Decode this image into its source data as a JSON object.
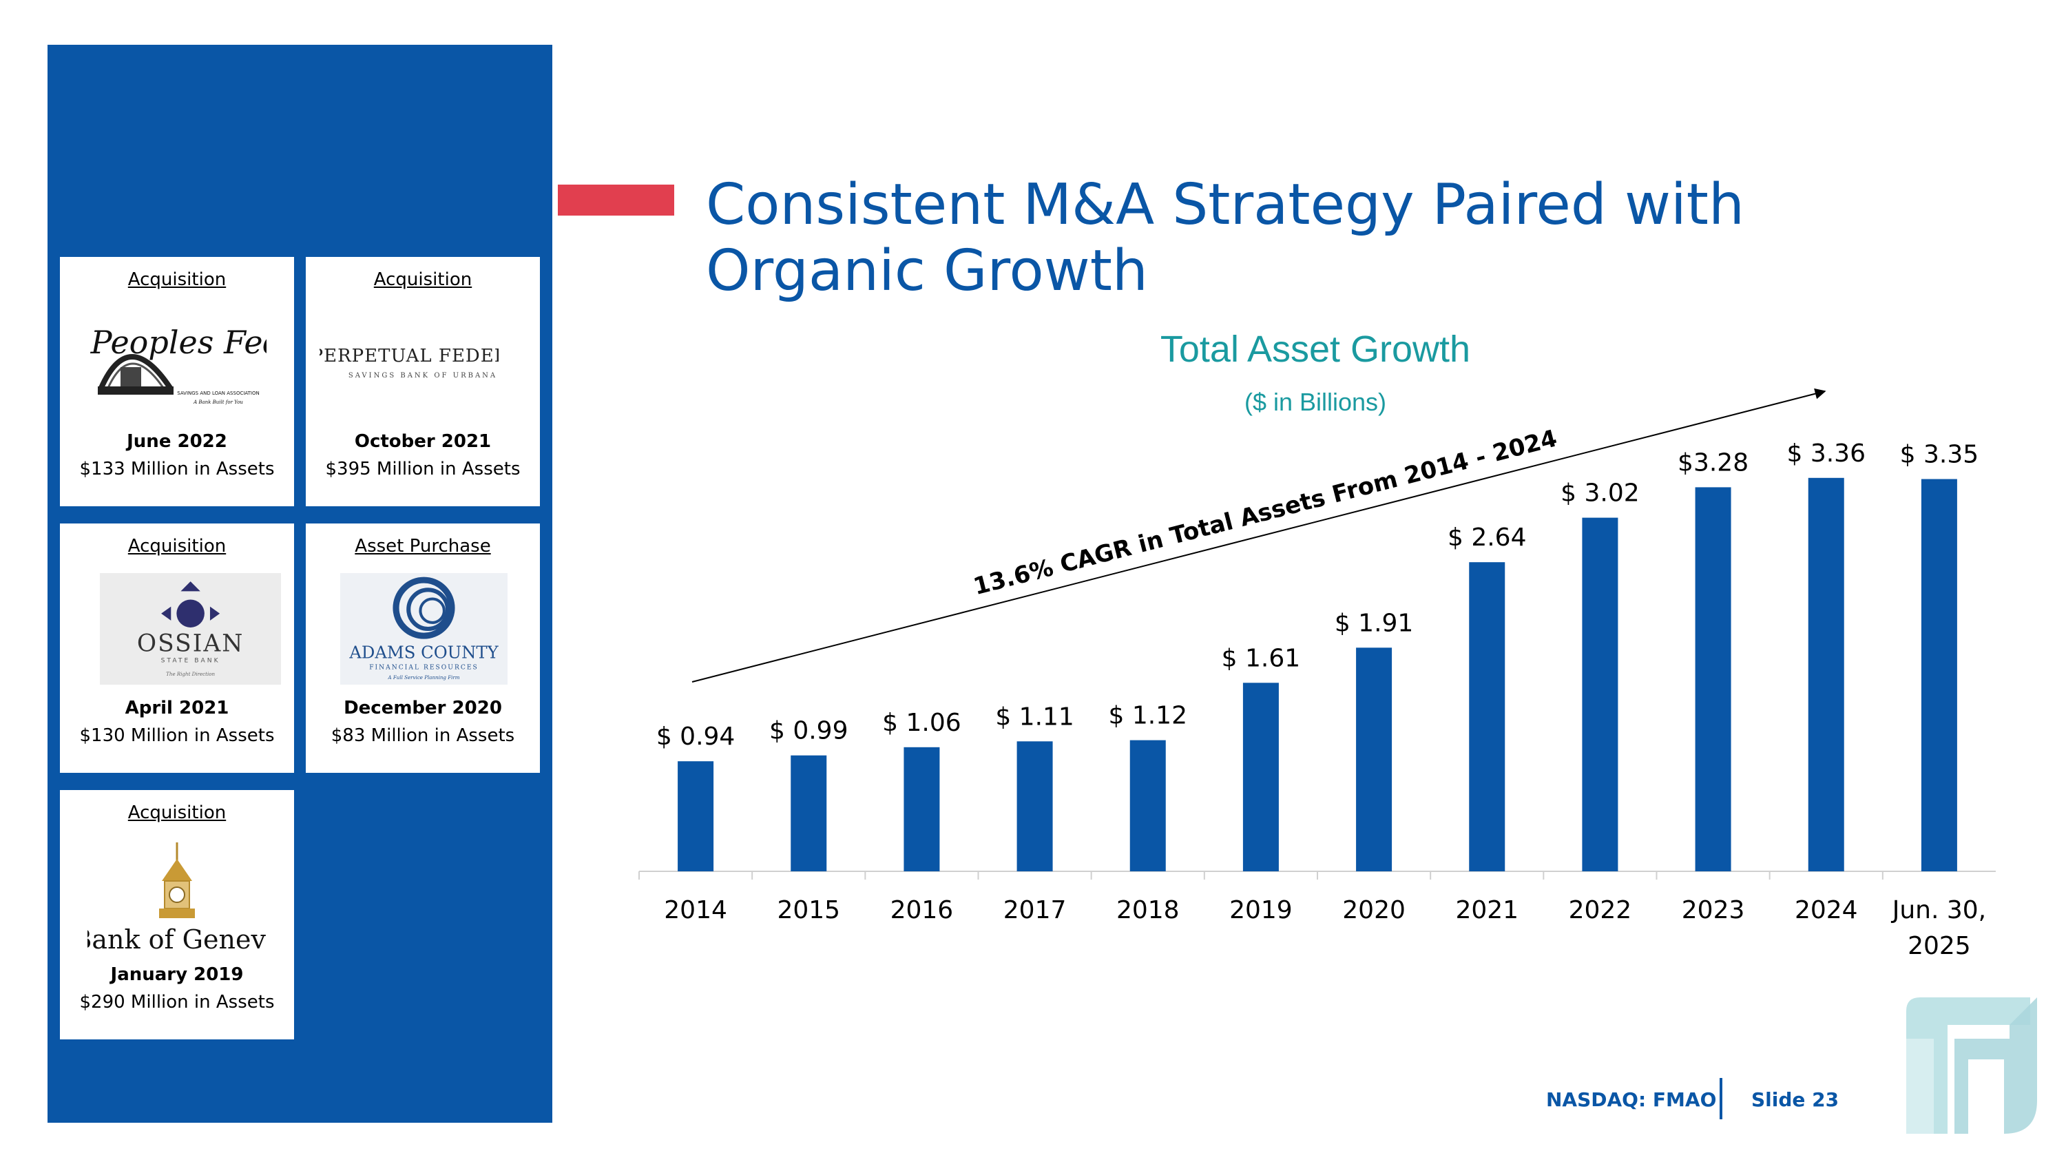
{
  "title": "Consistent M&A Strategy Paired with Organic Growth",
  "acquisitions": [
    {
      "kind": "Acquisition",
      "logo_text": "Peoples Federal",
      "logo_subtext": "SAVINGS AND LOAN ASSOCIATION",
      "logo_tagline": "A Bank Built for You",
      "date": "June 2022",
      "assets": "$133 Million in Assets"
    },
    {
      "kind": "Acquisition",
      "logo_text": "Perpetual Federal",
      "logo_subtext": "SAVINGS BANK OF URBANA",
      "date": "October 2021",
      "assets": "$395 Million in Assets"
    },
    {
      "kind": "Acquisition",
      "logo_text": "OSSIAN",
      "logo_subtext": "STATE BANK",
      "logo_tagline": "The Right Direction",
      "date": "April 2021",
      "assets": "$130 Million in Assets"
    },
    {
      "kind": "Asset Purchase",
      "logo_text": "ADAMS COUNTY",
      "logo_subtext": "FINANCIAL RESOURCES",
      "logo_tagline": "A Full Service Planning Firm",
      "date": "December 2020",
      "assets": "$83 Million in Assets"
    },
    {
      "kind": "Acquisition",
      "logo_text": "Bank of Geneva",
      "date": "January 2019",
      "assets": "$290 Million in Assets"
    }
  ],
  "chart_data": {
    "type": "bar",
    "title": "Total Asset Growth",
    "subtitle": "($ in Billions)",
    "categories": [
      "2014",
      "2015",
      "2016",
      "2017",
      "2018",
      "2019",
      "2020",
      "2021",
      "2022",
      "2023",
      "2024",
      "Jun. 30, 2025"
    ],
    "values": [
      0.94,
      0.99,
      1.06,
      1.11,
      1.12,
      1.61,
      1.91,
      2.64,
      3.02,
      3.28,
      3.36,
      3.35
    ],
    "data_labels": [
      "$ 0.94",
      "$ 0.99",
      "$ 1.06",
      "$ 1.11",
      "$ 1.12",
      "$ 1.61",
      "$ 1.91",
      "$ 2.64",
      "$ 3.02",
      "$3.28",
      "$ 3.36",
      "$ 3.35"
    ],
    "annotation": "13.6% CAGR in Total Assets From 2014 - 2024",
    "ylim": [
      0,
      3.5
    ],
    "grid": false,
    "bar_color": "#0a56a6"
  },
  "footer": {
    "ticker": "NASDAQ: FMAO",
    "slide": "Slide 23"
  },
  "colors": {
    "primary": "#0a56a6",
    "accent": "#e13f4f",
    "teal": "#1a9aa0"
  }
}
